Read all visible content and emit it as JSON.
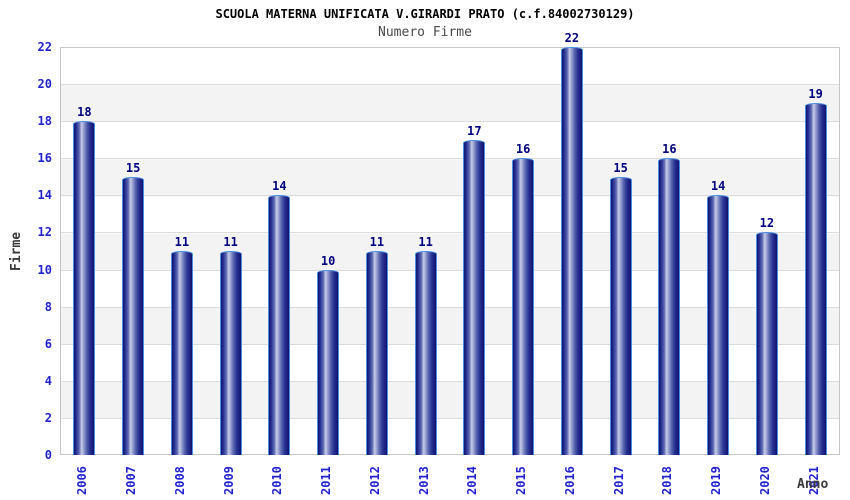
{
  "page": {
    "title": "SCUOLA MATERNA UNIFICATA V.GIRARDI PRATO (c.f.84002730129)",
    "subtitle": "Numero Firme"
  },
  "chart_data": {
    "type": "bar",
    "title": "SCUOLA MATERNA UNIFICATA V.GIRARDI PRATO (c.f.84002730129)",
    "subtitle": "Numero Firme",
    "categories": [
      "2006",
      "2007",
      "2008",
      "2009",
      "2010",
      "2011",
      "2012",
      "2013",
      "2014",
      "2015",
      "2016",
      "2017",
      "2018",
      "2019",
      "2020",
      "2021"
    ],
    "values": [
      18,
      15,
      11,
      11,
      14,
      10,
      11,
      11,
      17,
      16,
      22,
      15,
      16,
      14,
      12,
      19
    ],
    "xlabel": "Anno",
    "ylabel": "Firme",
    "ylim": [
      0,
      22
    ],
    "ytick_step": 2,
    "yticks": [
      0,
      2,
      4,
      6,
      8,
      10,
      12,
      14,
      16,
      18,
      20,
      22
    ],
    "grid": true,
    "legend": "none",
    "colors": {
      "bar_border": "#4a90e2",
      "bar_dark": "#11116e",
      "bar_highlight": "#c6cce6",
      "tick_label": "#2323cd",
      "value_label": "#00007e",
      "band_gray": "#f3f3f3",
      "band_white": "#ffffff",
      "gridline": "#dcdcdc",
      "plot_border": "#c6c6c6",
      "title_color": "#000000",
      "subtitle_color": "#4a4a4a",
      "axis_label_color": "#3a3a3a",
      "background": "#ffffff"
    }
  }
}
